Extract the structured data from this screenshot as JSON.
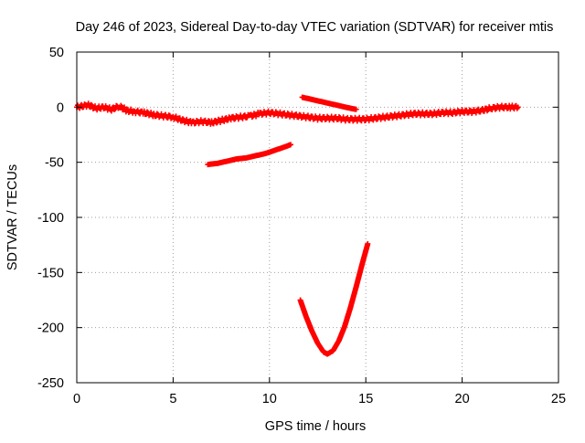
{
  "chart_data": {
    "type": "scatter",
    "title": "Day 246 of 2023, Sidereal Day-to-day VTEC variation (SDTVAR) for receiver mtis",
    "xlabel": "GPS time / hours",
    "ylabel": "SDTVAR / TECUs",
    "xlim": [
      0,
      25
    ],
    "ylim": [
      -250,
      50
    ],
    "xticks": [
      0,
      5,
      10,
      15,
      20,
      25
    ],
    "yticks": [
      50,
      0,
      -50,
      -100,
      -150,
      -200,
      -250
    ],
    "grid": true,
    "marker": "plus",
    "color": "#ff0000",
    "series": [
      {
        "points": [
          [
            0.0,
            0
          ],
          [
            0.3,
            1
          ],
          [
            0.6,
            2
          ],
          [
            1.0,
            -1
          ],
          [
            1.4,
            0
          ],
          [
            1.8,
            -2
          ],
          [
            2.2,
            1
          ],
          [
            2.6,
            -3
          ],
          [
            3.0,
            -4
          ],
          [
            3.5,
            -5
          ],
          [
            4.0,
            -7
          ],
          [
            4.5,
            -8
          ],
          [
            5.0,
            -9
          ],
          [
            5.5,
            -12
          ],
          [
            6.0,
            -14
          ],
          [
            6.5,
            -13
          ],
          [
            7.0,
            -14
          ],
          [
            7.5,
            -12
          ],
          [
            8.0,
            -10
          ],
          [
            8.5,
            -9
          ],
          [
            9.0,
            -8
          ],
          [
            9.5,
            -6
          ],
          [
            10.0,
            -5
          ],
          [
            10.5,
            -6
          ],
          [
            11.0,
            -7
          ],
          [
            11.5,
            -8
          ],
          [
            12.0,
            -9
          ],
          [
            12.5,
            -10
          ],
          [
            13.0,
            -10
          ],
          [
            13.5,
            -10
          ],
          [
            14.0,
            -11
          ],
          [
            14.5,
            -11
          ],
          [
            15.0,
            -11
          ],
          [
            15.5,
            -10
          ],
          [
            16.0,
            -9
          ],
          [
            16.5,
            -8
          ],
          [
            17.0,
            -7
          ],
          [
            17.5,
            -6
          ],
          [
            18.0,
            -6
          ],
          [
            18.5,
            -6
          ],
          [
            19.0,
            -5
          ],
          [
            19.5,
            -5
          ],
          [
            20.0,
            -4
          ],
          [
            20.5,
            -4
          ],
          [
            21.0,
            -3
          ],
          [
            21.5,
            -1
          ],
          [
            22.0,
            0
          ],
          [
            22.5,
            0
          ],
          [
            22.9,
            0
          ]
        ]
      },
      {
        "points": [
          [
            11.7,
            9
          ],
          [
            12.2,
            7
          ],
          [
            12.7,
            5
          ],
          [
            13.2,
            3
          ],
          [
            13.7,
            1
          ],
          [
            14.2,
            -1
          ],
          [
            14.5,
            -2
          ]
        ]
      },
      {
        "points": [
          [
            6.8,
            -52
          ],
          [
            7.3,
            -51
          ],
          [
            7.8,
            -49
          ],
          [
            8.3,
            -47
          ],
          [
            8.8,
            -46
          ],
          [
            9.3,
            -44
          ],
          [
            9.8,
            -42
          ],
          [
            10.3,
            -39
          ],
          [
            10.8,
            -36
          ],
          [
            11.1,
            -34
          ]
        ]
      },
      {
        "points": [
          [
            11.6,
            -175
          ],
          [
            11.9,
            -190
          ],
          [
            12.2,
            -203
          ],
          [
            12.5,
            -214
          ],
          [
            12.8,
            -222
          ],
          [
            13.0,
            -224
          ],
          [
            13.3,
            -221
          ],
          [
            13.6,
            -212
          ],
          [
            13.9,
            -199
          ],
          [
            14.2,
            -182
          ],
          [
            14.5,
            -163
          ],
          [
            14.8,
            -143
          ],
          [
            15.1,
            -124
          ]
        ]
      }
    ]
  }
}
